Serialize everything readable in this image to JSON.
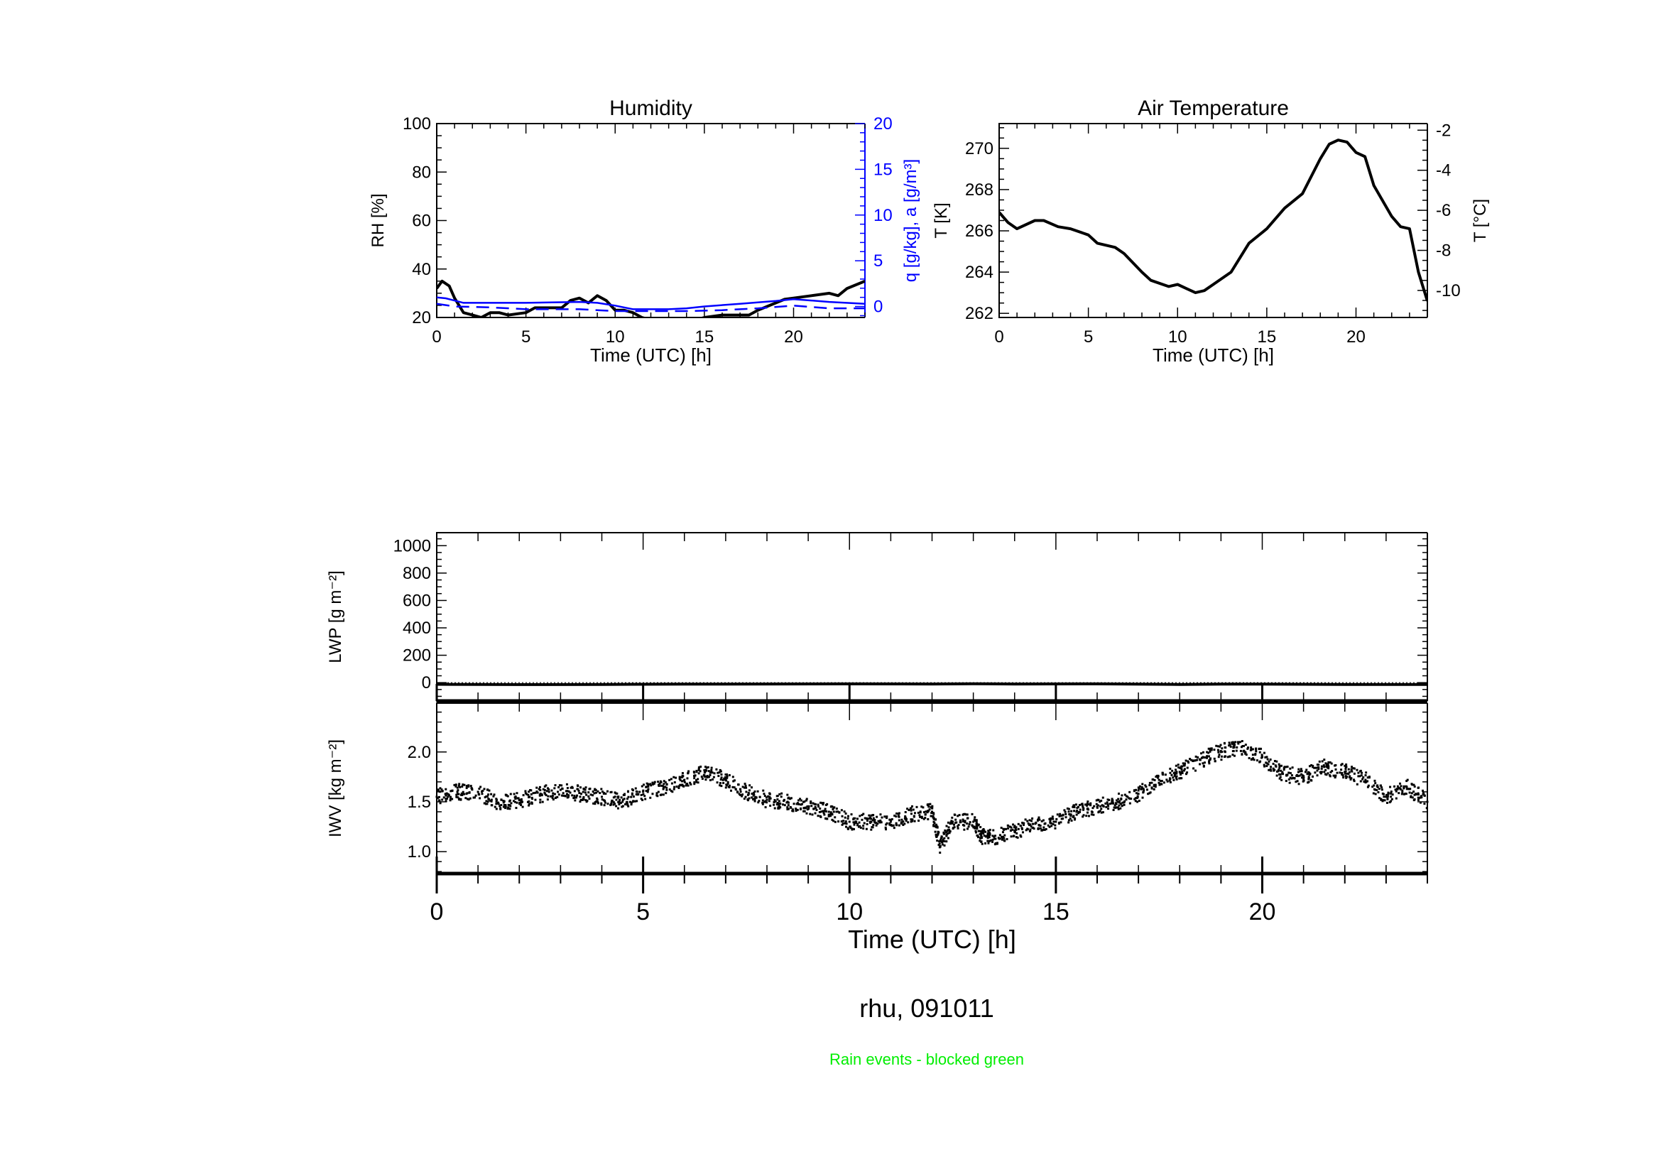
{
  "figure": {
    "caption": "rhu, 091011",
    "note": "Rain events - blocked green",
    "note_color": "#00ee00",
    "shared_xlabel": "Time (UTC) [h]"
  },
  "chart_data": [
    {
      "type": "line",
      "title": "Humidity",
      "xlabel": "Time (UTC) [h]",
      "ylabel": "RH [%]",
      "y2label": "q [g/kg], a [g/m³]",
      "y2color": "#0000ff",
      "xlim": [
        0,
        24
      ],
      "ylim": [
        20,
        100
      ],
      "y2lim": [
        -1.2,
        20
      ],
      "xticks": [
        0,
        5,
        10,
        15,
        20
      ],
      "yticks": [
        20,
        40,
        60,
        80,
        100
      ],
      "y2ticks": [
        0,
        5,
        10,
        15,
        20
      ],
      "series": [
        {
          "axis": "left",
          "color": "#000000",
          "dash": "solid",
          "x": [
            0,
            0.3,
            0.7,
            1,
            1.5,
            2,
            2.5,
            3,
            3.5,
            4,
            5,
            5.5,
            6,
            7,
            7.5,
            8,
            8.5,
            9,
            9.5,
            10,
            10.5,
            11,
            11.5,
            12,
            13,
            13.5,
            14.5,
            15,
            16,
            17,
            17.5,
            18,
            19,
            19.5,
            20,
            21,
            22,
            22.5,
            23,
            24
          ],
          "y": [
            32,
            35,
            33,
            28,
            22,
            21,
            20,
            22,
            22,
            21,
            22,
            24,
            24,
            24,
            27,
            28,
            26,
            29,
            27,
            23,
            23,
            22,
            20,
            19,
            19,
            18,
            19,
            20,
            21,
            21,
            21,
            23,
            26,
            27.5,
            28,
            29,
            30,
            29,
            32,
            35
          ]
        },
        {
          "axis": "right",
          "color": "#0000ff",
          "dash": "solid",
          "x": [
            0,
            0.5,
            1.5,
            3,
            5,
            8,
            9,
            10,
            11,
            13,
            14,
            15,
            17,
            19,
            20,
            22,
            24
          ],
          "y": [
            1.0,
            0.9,
            0.4,
            0.4,
            0.4,
            0.5,
            0.4,
            0.1,
            -0.3,
            -0.3,
            -0.2,
            0.0,
            0.3,
            0.6,
            0.8,
            0.5,
            0.3
          ]
        },
        {
          "axis": "right",
          "color": "#0000ff",
          "dash": "dashed",
          "x": [
            0,
            1,
            3,
            5,
            8,
            10,
            12,
            14,
            16,
            18,
            20,
            22,
            24
          ],
          "y": [
            0.3,
            0.0,
            -0.1,
            -0.3,
            -0.3,
            -0.5,
            -0.5,
            -0.5,
            -0.4,
            -0.2,
            0.1,
            -0.2,
            -0.2
          ]
        }
      ]
    },
    {
      "type": "line",
      "title": "Air Temperature",
      "xlabel": "Time (UTC) [h]",
      "ylabel": "T [K]",
      "y2label": "T [°C]",
      "xlim": [
        0,
        24
      ],
      "ylim": [
        261.8,
        271.2
      ],
      "y2lim": [
        -11.35,
        -1.67
      ],
      "xticks": [
        0,
        5,
        10,
        15,
        20
      ],
      "yticks": [
        262,
        264,
        266,
        268,
        270
      ],
      "y2ticks": [
        -2,
        -4,
        -6,
        -8,
        -10
      ],
      "series": [
        {
          "axis": "left",
          "color": "#000000",
          "dash": "solid",
          "x": [
            0,
            0.5,
            1,
            2,
            2.5,
            3.3,
            4,
            5,
            5.5,
            6.5,
            7,
            8,
            8.5,
            9.5,
            10,
            10.5,
            11,
            11.5,
            12,
            13,
            14,
            15,
            16,
            17,
            18,
            18.5,
            19,
            19.5,
            20,
            20.5,
            21,
            22,
            22.5,
            23,
            23.5,
            24
          ],
          "y": [
            266.9,
            266.4,
            266.1,
            266.5,
            266.5,
            266.2,
            266.1,
            265.8,
            265.4,
            265.2,
            264.9,
            264.0,
            263.6,
            263.3,
            263.4,
            263.2,
            263.0,
            263.1,
            263.4,
            264.0,
            265.4,
            266.1,
            267.1,
            267.8,
            269.5,
            270.2,
            270.4,
            270.3,
            269.8,
            269.6,
            268.2,
            266.7,
            266.2,
            266.1,
            264.0,
            262.6
          ]
        }
      ]
    },
    {
      "type": "line",
      "ylabel": "LWP [g m⁻²]",
      "xlim": [
        0,
        24
      ],
      "ylim": [
        -134,
        1095
      ],
      "xticks": [
        0,
        5,
        10,
        15,
        20
      ],
      "yticks": [
        0,
        200,
        400,
        600,
        800,
        1000
      ],
      "zero_line": 0,
      "series": [
        {
          "axis": "left",
          "color": "#000000",
          "dash": "solid",
          "x": [
            0,
            2,
            4,
            6,
            8,
            10,
            12,
            13,
            14,
            16,
            18,
            19,
            20,
            22,
            24
          ],
          "y": [
            -12,
            -14,
            -13,
            -11,
            -10,
            -9,
            -10,
            -8,
            -10,
            -9,
            -13,
            -11,
            -11,
            -13,
            -13
          ]
        }
      ]
    },
    {
      "type": "scatter",
      "ylabel": "IWV [kg m⁻²]",
      "xlabel": "Time (UTC) [h]",
      "xlim": [
        0,
        24
      ],
      "ylim": [
        0.78,
        2.49
      ],
      "xticks": [
        0,
        5,
        10,
        15,
        20
      ],
      "yticks": [
        1.0,
        1.5,
        2.0
      ],
      "x": [
        0,
        0.5,
        1,
        1.5,
        2,
        2.5,
        3,
        3.5,
        4,
        4.5,
        5,
        5.5,
        6,
        6.5,
        7,
        7.5,
        8,
        8.5,
        9,
        9.5,
        10,
        10.5,
        11,
        11.5,
        12,
        12.2,
        12.5,
        13,
        13.2,
        13.5,
        14,
        14.5,
        15,
        15.5,
        16,
        16.5,
        17,
        17.5,
        18,
        18.5,
        19,
        19.5,
        20,
        20.5,
        21,
        21.5,
        22,
        22.5,
        23,
        23.5,
        24
      ],
      "y": [
        1.55,
        1.6,
        1.6,
        1.48,
        1.52,
        1.57,
        1.62,
        1.58,
        1.55,
        1.5,
        1.6,
        1.65,
        1.72,
        1.8,
        1.72,
        1.6,
        1.52,
        1.5,
        1.45,
        1.4,
        1.3,
        1.3,
        1.3,
        1.38,
        1.4,
        1.05,
        1.3,
        1.3,
        1.15,
        1.15,
        1.2,
        1.28,
        1.3,
        1.4,
        1.45,
        1.5,
        1.58,
        1.72,
        1.8,
        1.92,
        2.0,
        2.05,
        1.95,
        1.78,
        1.75,
        1.85,
        1.8,
        1.72,
        1.55,
        1.65,
        1.5
      ]
    }
  ]
}
